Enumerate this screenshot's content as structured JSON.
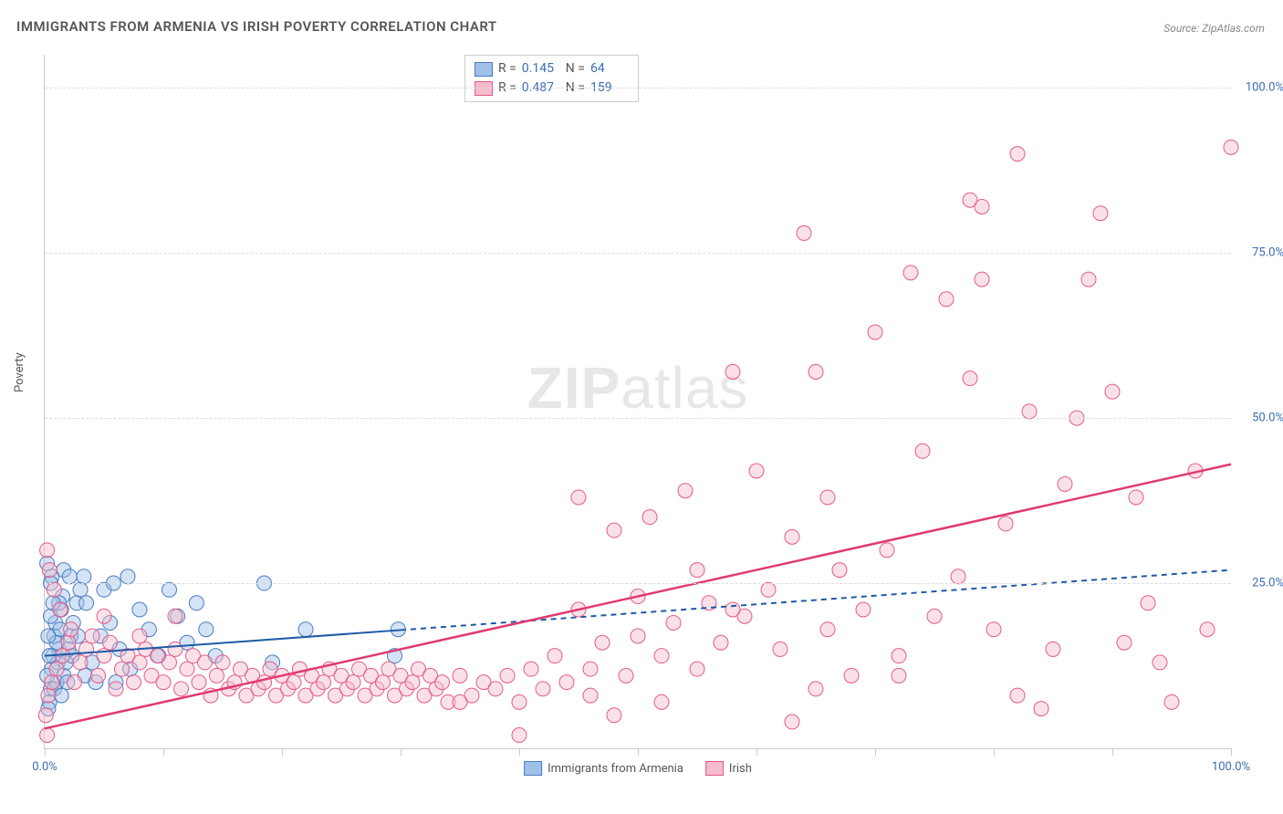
{
  "title": "IMMIGRANTS FROM ARMENIA VS IRISH POVERTY CORRELATION CHART",
  "source": "Source: ZipAtlas.com",
  "ylabel": "Poverty",
  "watermark": {
    "zip": "ZIP",
    "atlas": "atlas"
  },
  "chart": {
    "type": "scatter",
    "background_color": "#ffffff",
    "grid_color": "#dddddd",
    "axis_color": "#cccccc",
    "tick_label_color": "#3b6db3",
    "xlim": [
      0,
      100
    ],
    "ylim": [
      0,
      105
    ],
    "xticks": [
      0,
      10,
      20,
      30,
      40,
      50,
      60,
      70,
      80,
      90,
      100
    ],
    "xtick_labels": {
      "0": "0.0%",
      "100": "100.0%"
    },
    "yticks": [
      25,
      50,
      75,
      100
    ],
    "ytick_labels": {
      "25": "25.0%",
      "50": "50.0%",
      "75": "75.0%",
      "100": "100.0%"
    },
    "marker_radius": 8,
    "marker_opacity": 0.45,
    "series": [
      {
        "name": "Immigrants from Armenia",
        "fill_color": "#9fc0e8",
        "stroke_color": "#4a7cc0",
        "line_color": "#1f5aa6",
        "line_width": 2,
        "dash_after": 30,
        "R": "0.145",
        "N": "64",
        "trend": {
          "x1": 0,
          "y1": 14,
          "x2": 100,
          "y2": 27
        },
        "points": [
          [
            0.4,
            7
          ],
          [
            0.5,
            9
          ],
          [
            0.6,
            12
          ],
          [
            0.7,
            14
          ],
          [
            0.8,
            17
          ],
          [
            0.9,
            19
          ],
          [
            1.0,
            10
          ],
          [
            1.1,
            13
          ],
          [
            1.2,
            15
          ],
          [
            1.3,
            18
          ],
          [
            1.4,
            21
          ],
          [
            1.5,
            23
          ],
          [
            1.6,
            11
          ],
          [
            1.8,
            13
          ],
          [
            2.0,
            15
          ],
          [
            2.2,
            17
          ],
          [
            2.4,
            19
          ],
          [
            2.7,
            22
          ],
          [
            3.0,
            24
          ],
          [
            3.3,
            26
          ],
          [
            0.3,
            6
          ],
          [
            0.4,
            14
          ],
          [
            0.5,
            20
          ],
          [
            0.6,
            26
          ],
          [
            0.8,
            9
          ],
          [
            1.0,
            16
          ],
          [
            1.2,
            22
          ],
          [
            1.6,
            27
          ],
          [
            1.9,
            10
          ],
          [
            2.3,
            14
          ],
          [
            2.8,
            17
          ],
          [
            3.4,
            11
          ],
          [
            4.0,
            13
          ],
          [
            4.7,
            17
          ],
          [
            5.5,
            19
          ],
          [
            6.3,
            15
          ],
          [
            7.2,
            12
          ],
          [
            8.0,
            21
          ],
          [
            8.8,
            18
          ],
          [
            9.6,
            14
          ],
          [
            10.5,
            24
          ],
          [
            11.2,
            20
          ],
          [
            12.0,
            16
          ],
          [
            12.8,
            22
          ],
          [
            13.6,
            18
          ],
          [
            14.4,
            14
          ],
          [
            5.0,
            24
          ],
          [
            6.0,
            10
          ],
          [
            7.0,
            26
          ],
          [
            0.5,
            25
          ],
          [
            0.7,
            22
          ],
          [
            0.2,
            11
          ],
          [
            0.3,
            17
          ],
          [
            1.4,
            8
          ],
          [
            2.1,
            26
          ],
          [
            3.5,
            22
          ],
          [
            4.3,
            10
          ],
          [
            5.8,
            25
          ],
          [
            18.5,
            25
          ],
          [
            19.2,
            13
          ],
          [
            22.0,
            18
          ],
          [
            29.5,
            14
          ],
          [
            29.8,
            18
          ],
          [
            0.2,
            28
          ]
        ]
      },
      {
        "name": "Irish",
        "fill_color": "#f5bccb",
        "stroke_color": "#e55a8a",
        "line_color": "#e03a72",
        "line_width": 2.5,
        "R": "0.487",
        "N": "159",
        "trend": {
          "x1": 0,
          "y1": 3,
          "x2": 100,
          "y2": 43
        },
        "points": [
          [
            0.3,
            8
          ],
          [
            0.6,
            10
          ],
          [
            1,
            12
          ],
          [
            1.5,
            14
          ],
          [
            2,
            16
          ],
          [
            2.5,
            10
          ],
          [
            3,
            13
          ],
          [
            3.5,
            15
          ],
          [
            4,
            17
          ],
          [
            4.5,
            11
          ],
          [
            5,
            14
          ],
          [
            5.5,
            16
          ],
          [
            6,
            9
          ],
          [
            6.5,
            12
          ],
          [
            7,
            14
          ],
          [
            7.5,
            10
          ],
          [
            8,
            13
          ],
          [
            8.5,
            15
          ],
          [
            9,
            11
          ],
          [
            9.5,
            14
          ],
          [
            10,
            10
          ],
          [
            10.5,
            13
          ],
          [
            11,
            15
          ],
          [
            11.5,
            9
          ],
          [
            12,
            12
          ],
          [
            12.5,
            14
          ],
          [
            13,
            10
          ],
          [
            13.5,
            13
          ],
          [
            14,
            8
          ],
          [
            14.5,
            11
          ],
          [
            15,
            13
          ],
          [
            15.5,
            9
          ],
          [
            16,
            10
          ],
          [
            16.5,
            12
          ],
          [
            17,
            8
          ],
          [
            17.5,
            11
          ],
          [
            18,
            9
          ],
          [
            18.5,
            10
          ],
          [
            19,
            12
          ],
          [
            19.5,
            8
          ],
          [
            20,
            11
          ],
          [
            20.5,
            9
          ],
          [
            21,
            10
          ],
          [
            21.5,
            12
          ],
          [
            22,
            8
          ],
          [
            22.5,
            11
          ],
          [
            23,
            9
          ],
          [
            23.5,
            10
          ],
          [
            24,
            12
          ],
          [
            24.5,
            8
          ],
          [
            25,
            11
          ],
          [
            25.5,
            9
          ],
          [
            26,
            10
          ],
          [
            26.5,
            12
          ],
          [
            27,
            8
          ],
          [
            27.5,
            11
          ],
          [
            28,
            9
          ],
          [
            28.5,
            10
          ],
          [
            29,
            12
          ],
          [
            29.5,
            8
          ],
          [
            30,
            11
          ],
          [
            30.5,
            9
          ],
          [
            31,
            10
          ],
          [
            31.5,
            12
          ],
          [
            32,
            8
          ],
          [
            32.5,
            11
          ],
          [
            33,
            9
          ],
          [
            33.5,
            10
          ],
          [
            34,
            7
          ],
          [
            35,
            11
          ],
          [
            36,
            8
          ],
          [
            37,
            10
          ],
          [
            38,
            9
          ],
          [
            39,
            11
          ],
          [
            40,
            7
          ],
          [
            41,
            12
          ],
          [
            42,
            9
          ],
          [
            43,
            14
          ],
          [
            44,
            10
          ],
          [
            45,
            21
          ],
          [
            45,
            38
          ],
          [
            46,
            12
          ],
          [
            47,
            16
          ],
          [
            48,
            33
          ],
          [
            49,
            11
          ],
          [
            50,
            17
          ],
          [
            51,
            35
          ],
          [
            52,
            14
          ],
          [
            53,
            19
          ],
          [
            54,
            39
          ],
          [
            55,
            12
          ],
          [
            56,
            22
          ],
          [
            57,
            16
          ],
          [
            58,
            57
          ],
          [
            59,
            20
          ],
          [
            60,
            42
          ],
          [
            61,
            24
          ],
          [
            62,
            15
          ],
          [
            63,
            32
          ],
          [
            64,
            78
          ],
          [
            65,
            57
          ],
          [
            66,
            18
          ],
          [
            67,
            27
          ],
          [
            68,
            11
          ],
          [
            69,
            21
          ],
          [
            70,
            63
          ],
          [
            71,
            30
          ],
          [
            72,
            14
          ],
          [
            73,
            72
          ],
          [
            74,
            45
          ],
          [
            75,
            20
          ],
          [
            76,
            68
          ],
          [
            77,
            26
          ],
          [
            78,
            56
          ],
          [
            78,
            83
          ],
          [
            79,
            82
          ],
          [
            79,
            71
          ],
          [
            80,
            18
          ],
          [
            81,
            34
          ],
          [
            82,
            90
          ],
          [
            83,
            51
          ],
          [
            84,
            6
          ],
          [
            85,
            15
          ],
          [
            86,
            40
          ],
          [
            87,
            50
          ],
          [
            88,
            71
          ],
          [
            89,
            81
          ],
          [
            90,
            54
          ],
          [
            91,
            16
          ],
          [
            92,
            38
          ],
          [
            93,
            22
          ],
          [
            94,
            13
          ],
          [
            95,
            7
          ],
          [
            97,
            42
          ],
          [
            98,
            18
          ],
          [
            100,
            91
          ],
          [
            0.2,
            30
          ],
          [
            0.4,
            27
          ],
          [
            0.8,
            24
          ],
          [
            1.3,
            21
          ],
          [
            2.2,
            18
          ],
          [
            0.1,
            5
          ],
          [
            0.2,
            2
          ],
          [
            35,
            7
          ],
          [
            48,
            5
          ],
          [
            52,
            7
          ],
          [
            65,
            9
          ],
          [
            40,
            2
          ],
          [
            72,
            11
          ],
          [
            82,
            8
          ],
          [
            63,
            4
          ],
          [
            55,
            27
          ],
          [
            58,
            21
          ],
          [
            66,
            38
          ],
          [
            5,
            20
          ],
          [
            8,
            17
          ],
          [
            11,
            20
          ],
          [
            46,
            8
          ],
          [
            50,
            23
          ]
        ]
      }
    ],
    "legend_bottom": [
      {
        "label": "Immigrants from Armenia",
        "fill": "#9fc0e8",
        "stroke": "#4a7cc0"
      },
      {
        "label": "Irish",
        "fill": "#f5bccb",
        "stroke": "#e55a8a"
      }
    ]
  }
}
